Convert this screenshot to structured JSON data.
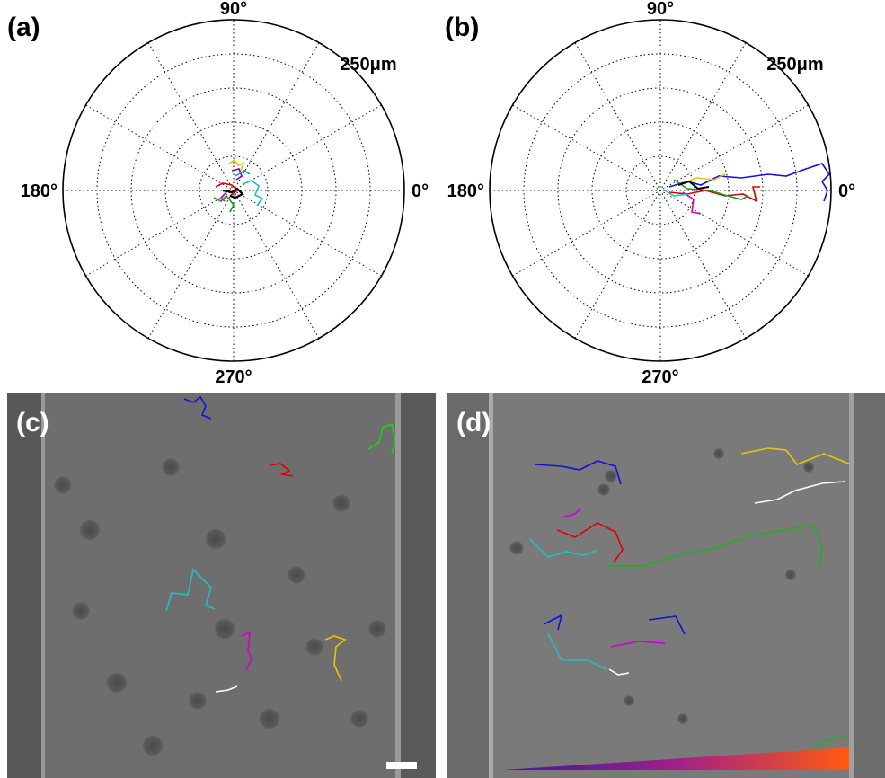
{
  "panels": [
    {
      "label": "(a)",
      "angle_labels": {
        "top": "90°",
        "left": "180°",
        "right": "0°",
        "bottom": "270°"
      },
      "radius_label": "250μm"
    },
    {
      "label": "(b)",
      "angle_labels": {
        "top": "90°",
        "left": "180°",
        "right": "0°",
        "bottom": "270°"
      },
      "radius_label": "250μm"
    },
    {
      "label": "(c)"
    },
    {
      "label": "(d)"
    }
  ]
}
